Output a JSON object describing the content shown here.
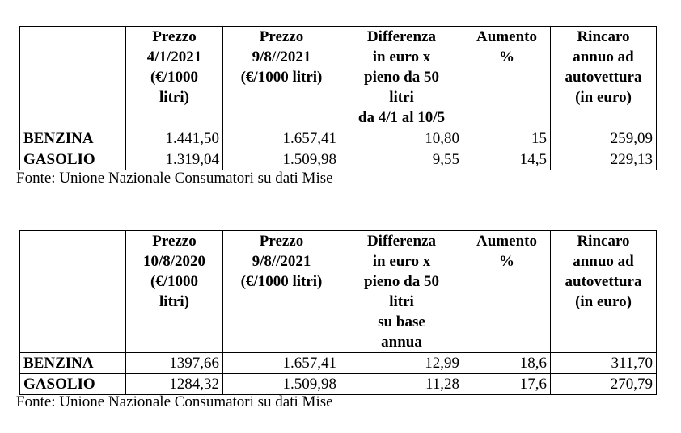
{
  "table1": {
    "headers": [
      [],
      [
        "Prezzo",
        "4/1/2021",
        "(€/1000",
        "litri)"
      ],
      [
        "Prezzo",
        "9/8//2021",
        "(€/1000 litri)"
      ],
      [
        "Differenza",
        "in euro x",
        "pieno da 50",
        "litri",
        "da 4/1 al 10/5"
      ],
      [
        "Aumento",
        "%"
      ],
      [
        "Rincaro",
        "annuo ad",
        "autovettura",
        "(in euro)"
      ]
    ],
    "rows": [
      [
        "BENZINA",
        "1.441,50",
        "1.657,41",
        "10,80",
        "15",
        "259,09"
      ],
      [
        "GASOLIO",
        "1.319,04",
        "1.509,98",
        "9,55",
        "14,5",
        "229,13"
      ]
    ],
    "source": "Fonte: Unione Nazionale Consumatori su dati Mise"
  },
  "table2": {
    "headers": [
      [],
      [
        "Prezzo",
        "10/8/2020",
        "(€/1000",
        "litri)"
      ],
      [
        "Prezzo",
        "9/8//2021",
        "(€/1000 litri)"
      ],
      [
        "Differenza",
        "in euro x",
        "pieno da 50",
        "litri",
        "su base",
        "annua"
      ],
      [
        "Aumento",
        "%"
      ],
      [
        "Rincaro",
        "annuo ad",
        "autovettura",
        "(in euro)"
      ]
    ],
    "rows": [
      [
        "BENZINA",
        "1397,66",
        "1.657,41",
        "12,99",
        "18,6",
        "311,70"
      ],
      [
        "GASOLIO",
        "1284,32",
        "1.509,98",
        "11,28",
        "17,6",
        "270,79"
      ]
    ],
    "source": "Fonte: Unione Nazionale Consumatori su dati Mise"
  }
}
